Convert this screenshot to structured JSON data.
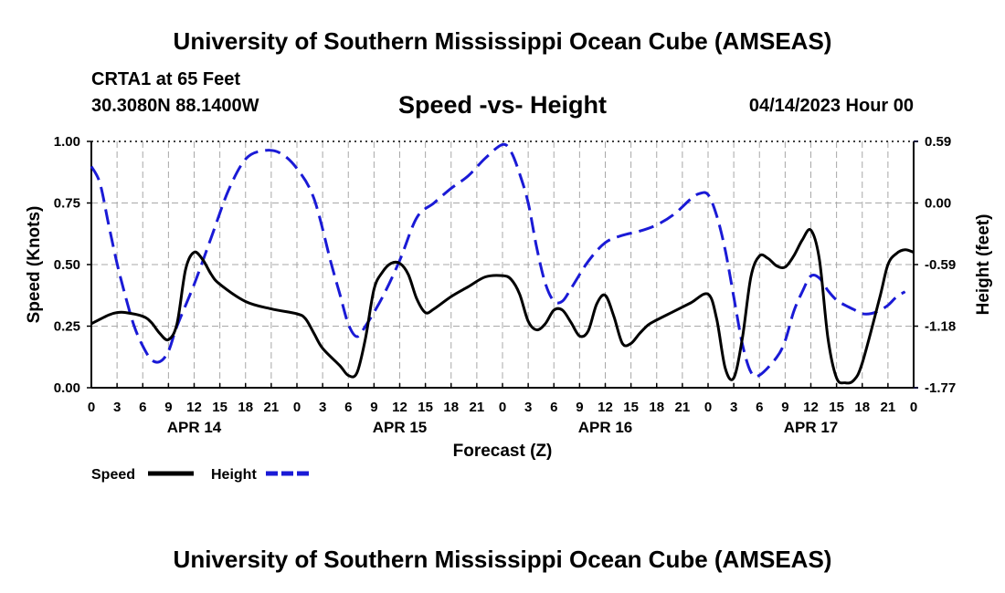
{
  "header": {
    "title": "University of Southern Mississippi Ocean Cube (AMSEAS)",
    "station": "CRTA1 at 65 Feet",
    "coords": "30.3080N  88.1400W",
    "subtitle": "Speed -vs- Height",
    "date": "04/14/2023 Hour 00"
  },
  "footer": {
    "title": "University of Southern Mississippi Ocean Cube (AMSEAS)"
  },
  "colors": {
    "speed": "#000000",
    "height": "#1a1ad6",
    "grid": "#a8a8a8"
  },
  "chart_data": {
    "type": "line",
    "title": "Speed -vs- Height",
    "xlabel": "Forecast (Z)",
    "ylabel": "Speed (Knots)",
    "y2label": "Height (feet)",
    "xlim": [
      0,
      96
    ],
    "ylim": [
      0,
      1
    ],
    "y2lim": [
      -1.77,
      0.59
    ],
    "x_tick_labels": [
      "0",
      "3",
      "6",
      "9",
      "12",
      "15",
      "18",
      "21",
      "0",
      "3",
      "6",
      "9",
      "12",
      "15",
      "18",
      "21",
      "0",
      "3",
      "6",
      "9",
      "12",
      "15",
      "18",
      "21",
      "0",
      "3",
      "6",
      "9",
      "12",
      "15",
      "18",
      "21",
      "0"
    ],
    "day_labels": [
      {
        "label": "APR 14",
        "x": 12
      },
      {
        "label": "APR 15",
        "x": 36
      },
      {
        "label": "APR 16",
        "x": 60
      },
      {
        "label": "APR 17",
        "x": 84
      }
    ],
    "y_ticks": [
      "0.00",
      "0.25",
      "0.50",
      "0.75",
      "1.00"
    ],
    "y2_ticks": [
      "-1.77",
      "-1.18",
      "-0.59",
      "0.00",
      "0.59"
    ],
    "series": [
      {
        "name": "Speed",
        "axis": "left",
        "style": "solid",
        "points": [
          [
            0,
            0.26
          ],
          [
            2,
            0.295
          ],
          [
            3,
            0.305
          ],
          [
            4,
            0.305
          ],
          [
            6,
            0.29
          ],
          [
            7,
            0.265
          ],
          [
            8,
            0.22
          ],
          [
            9,
            0.195
          ],
          [
            10,
            0.26
          ],
          [
            11,
            0.48
          ],
          [
            12,
            0.55
          ],
          [
            13,
            0.52
          ],
          [
            14,
            0.46
          ],
          [
            15,
            0.42
          ],
          [
            18,
            0.35
          ],
          [
            21,
            0.32
          ],
          [
            24,
            0.3
          ],
          [
            25,
            0.28
          ],
          [
            26,
            0.22
          ],
          [
            27,
            0.16
          ],
          [
            29,
            0.09
          ],
          [
            30,
            0.05
          ],
          [
            31,
            0.06
          ],
          [
            32,
            0.2
          ],
          [
            33,
            0.4
          ],
          [
            34,
            0.47
          ],
          [
            35,
            0.505
          ],
          [
            36,
            0.505
          ],
          [
            37,
            0.46
          ],
          [
            38,
            0.36
          ],
          [
            39,
            0.305
          ],
          [
            40,
            0.32
          ],
          [
            42,
            0.37
          ],
          [
            44,
            0.41
          ],
          [
            46,
            0.45
          ],
          [
            48,
            0.455
          ],
          [
            49,
            0.44
          ],
          [
            50,
            0.38
          ],
          [
            51,
            0.27
          ],
          [
            52,
            0.235
          ],
          [
            53,
            0.26
          ],
          [
            54,
            0.315
          ],
          [
            55,
            0.315
          ],
          [
            56,
            0.265
          ],
          [
            57,
            0.21
          ],
          [
            58,
            0.23
          ],
          [
            59,
            0.34
          ],
          [
            60,
            0.375
          ],
          [
            61,
            0.29
          ],
          [
            62,
            0.18
          ],
          [
            63,
            0.18
          ],
          [
            64,
            0.22
          ],
          [
            65,
            0.255
          ],
          [
            66,
            0.275
          ],
          [
            68,
            0.31
          ],
          [
            70,
            0.345
          ],
          [
            72,
            0.38
          ],
          [
            73,
            0.28
          ],
          [
            74,
            0.08
          ],
          [
            75,
            0.04
          ],
          [
            76,
            0.2
          ],
          [
            77,
            0.45
          ],
          [
            78,
            0.535
          ],
          [
            79,
            0.525
          ],
          [
            80,
            0.495
          ],
          [
            81,
            0.49
          ],
          [
            82,
            0.535
          ],
          [
            83,
            0.6
          ],
          [
            84,
            0.64
          ],
          [
            85,
            0.52
          ],
          [
            86,
            0.2
          ],
          [
            87,
            0.04
          ],
          [
            88,
            0.02
          ],
          [
            89,
            0.03
          ],
          [
            90,
            0.1
          ],
          [
            92,
            0.36
          ],
          [
            93,
            0.5
          ],
          [
            94,
            0.545
          ],
          [
            95,
            0.56
          ],
          [
            96,
            0.55
          ]
        ]
      },
      {
        "name": "Height",
        "axis": "right",
        "style": "dashed",
        "points": [
          [
            0,
            0.35
          ],
          [
            1,
            0.19
          ],
          [
            2,
            -0.2
          ],
          [
            3,
            -0.58
          ],
          [
            4,
            -0.9
          ],
          [
            5,
            -1.18
          ],
          [
            6,
            -1.37
          ],
          [
            7,
            -1.5
          ],
          [
            8,
            -1.52
          ],
          [
            9,
            -1.42
          ],
          [
            10,
            -1.18
          ],
          [
            12,
            -0.78
          ],
          [
            14,
            -0.33
          ],
          [
            16,
            0.12
          ],
          [
            18,
            0.42
          ],
          [
            20,
            0.5
          ],
          [
            22,
            0.48
          ],
          [
            24,
            0.33
          ],
          [
            26,
            0.04
          ],
          [
            28,
            -0.58
          ],
          [
            29,
            -0.87
          ],
          [
            30,
            -1.16
          ],
          [
            31,
            -1.28
          ],
          [
            32,
            -1.18
          ],
          [
            34,
            -0.9
          ],
          [
            36,
            -0.55
          ],
          [
            38,
            -0.14
          ],
          [
            40,
            0.0
          ],
          [
            42,
            0.14
          ],
          [
            44,
            0.26
          ],
          [
            46,
            0.43
          ],
          [
            48,
            0.56
          ],
          [
            49,
            0.49
          ],
          [
            50,
            0.28
          ],
          [
            51,
            0.0
          ],
          [
            52,
            -0.43
          ],
          [
            53,
            -0.77
          ],
          [
            54,
            -0.94
          ],
          [
            55,
            -0.94
          ],
          [
            56,
            -0.82
          ],
          [
            58,
            -0.56
          ],
          [
            60,
            -0.38
          ],
          [
            62,
            -0.31
          ],
          [
            64,
            -0.27
          ],
          [
            66,
            -0.21
          ],
          [
            68,
            -0.11
          ],
          [
            70,
            0.04
          ],
          [
            71,
            0.09
          ],
          [
            72,
            0.08
          ],
          [
            73,
            -0.12
          ],
          [
            74,
            -0.45
          ],
          [
            75,
            -0.9
          ],
          [
            76,
            -1.35
          ],
          [
            77,
            -1.62
          ],
          [
            78,
            -1.65
          ],
          [
            80,
            -1.48
          ],
          [
            81,
            -1.32
          ],
          [
            82,
            -1.04
          ],
          [
            83,
            -0.85
          ],
          [
            84,
            -0.7
          ],
          [
            85,
            -0.72
          ],
          [
            86,
            -0.84
          ],
          [
            87,
            -0.93
          ],
          [
            88,
            -0.98
          ],
          [
            89,
            -1.02
          ],
          [
            90,
            -1.06
          ],
          [
            91,
            -1.06
          ],
          [
            92,
            -1.03
          ],
          [
            93,
            -0.98
          ],
          [
            94,
            -0.9
          ],
          [
            95,
            -0.85
          ]
        ]
      }
    ],
    "legend": [
      {
        "label": "Speed",
        "style": "solid"
      },
      {
        "label": "Height",
        "style": "dashed"
      }
    ]
  }
}
